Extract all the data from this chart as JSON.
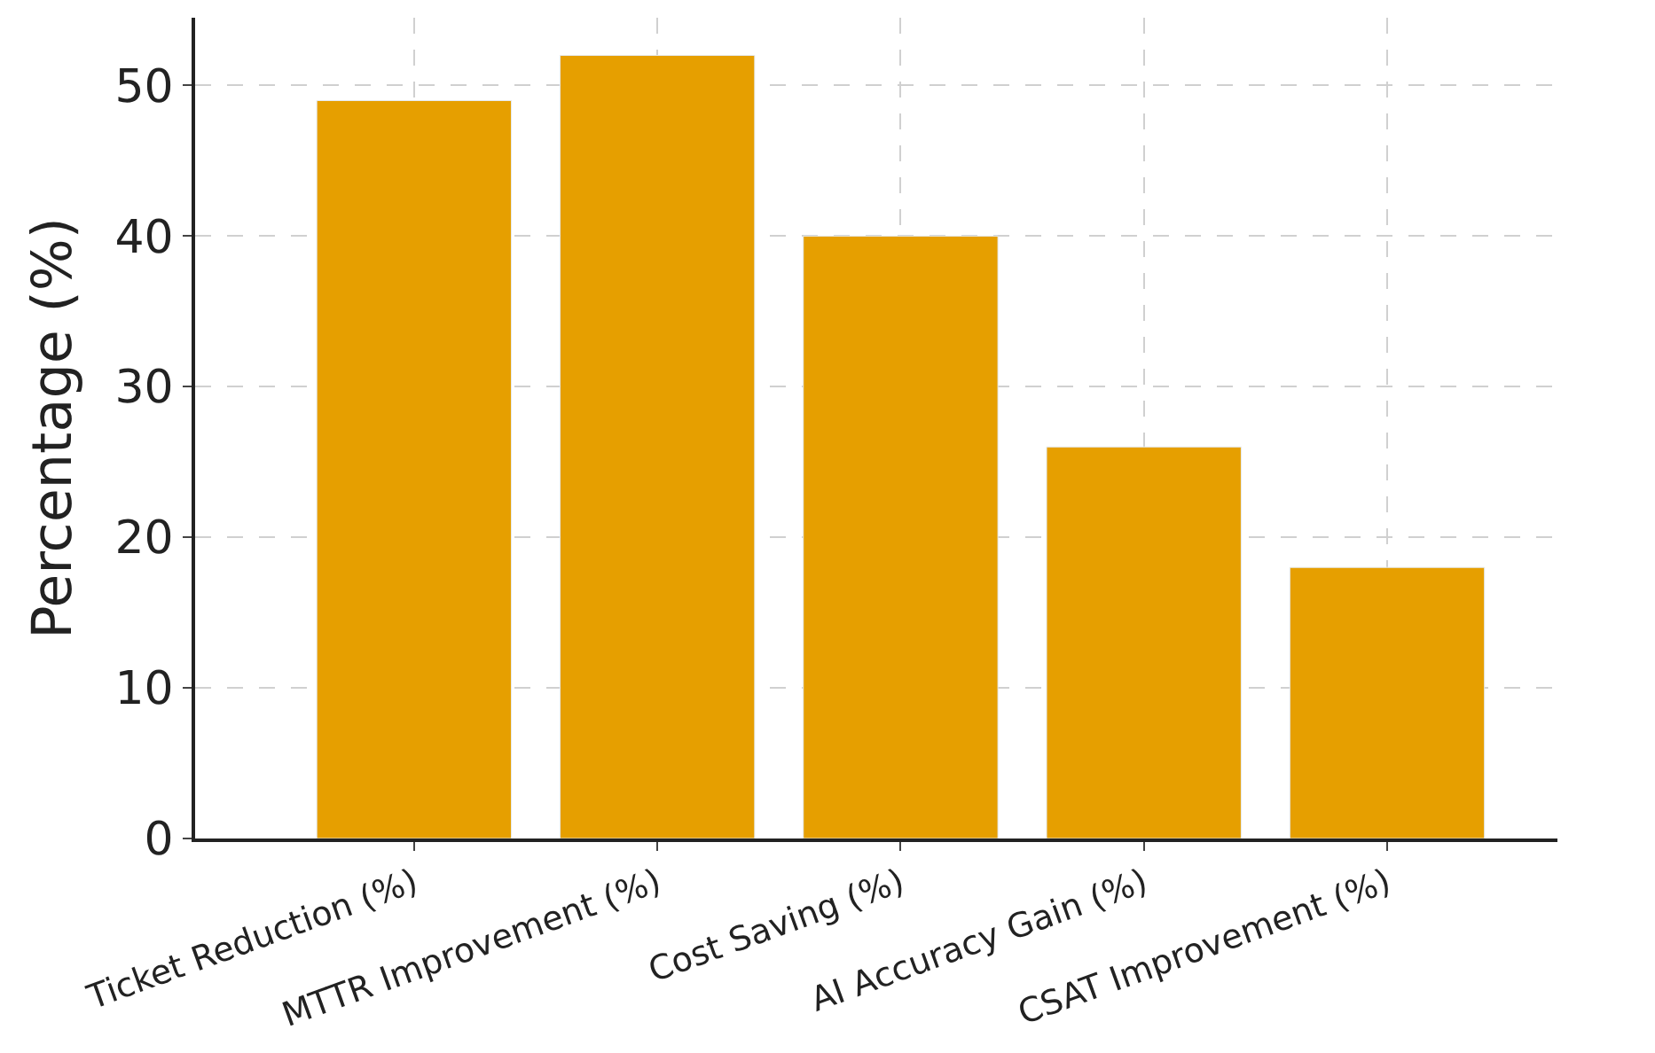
{
  "chart_data": {
    "type": "bar",
    "ylabel": "Percentage (%)",
    "categories": [
      "Ticket Reduction (%)",
      "MTTR Improvement (%)",
      "Cost Saving (%)",
      "AI Accuracy Gain (%)",
      "CSAT Improvement (%)"
    ],
    "values": [
      49,
      52,
      40,
      26,
      18
    ],
    "color": "#e69f00",
    "ylim": [
      0,
      54.5
    ],
    "yticks": [
      0,
      10,
      20,
      30,
      40,
      50
    ],
    "grid": true
  }
}
